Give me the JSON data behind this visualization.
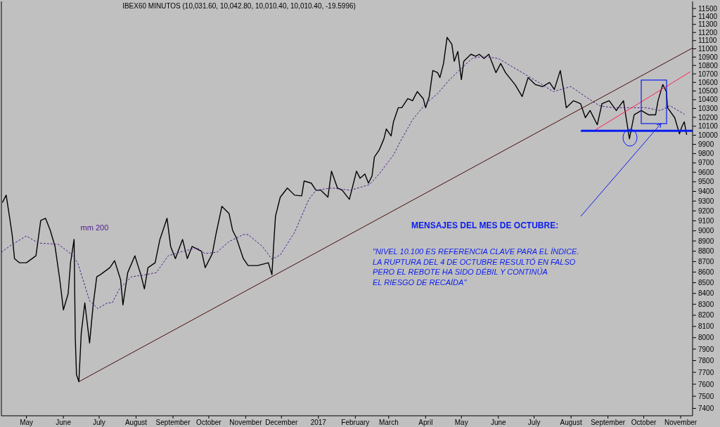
{
  "chart_data": {
    "type": "line",
    "title": "IBEX60 MINUTOS (10,031.60, 10,042.80, 10,010.40, 10,010.40, -19.5996)",
    "annotations": [
      "MENSAJES DEL MES DE OCTUBRE:",
      "\"NIVEL 10.100 ES REFERENCIA CLAVE PARA EL ÍNDICE.\nLA RUPTURA DEL 4 DE OCTUBRE RESULTÓ EN FALSO\nPERO EL REBOTE HA SIDO DÉBIL Y CONTINÚA\nEL RIESGO DE RECAÍDA\""
    ],
    "log": true,
    "grid": false,
    "xlim": [
      "2016-04-24",
      "2017-11-25"
    ],
    "xticks": [
      {
        "value": "2016-05-15",
        "label": "May"
      },
      {
        "value": "2016-06-15",
        "label": "June"
      },
      {
        "value": "2016-07-15",
        "label": "July"
      },
      {
        "value": "2016-08-15",
        "label": "August"
      },
      {
        "value": "2016-09-15",
        "label": "September"
      },
      {
        "value": "2016-10-15",
        "label": "October"
      },
      {
        "value": "2016-11-15",
        "label": "November"
      },
      {
        "value": "2016-12-15",
        "label": "December"
      },
      {
        "value": "2017-01-15",
        "label": "2017"
      },
      {
        "value": "2017-02-15",
        "label": "February"
      },
      {
        "value": "2017-03-15",
        "label": "March"
      },
      {
        "value": "2017-04-15",
        "label": "April"
      },
      {
        "value": "2017-05-15",
        "label": "May"
      },
      {
        "value": "2017-06-15",
        "label": "June"
      },
      {
        "value": "2017-07-15",
        "label": "July"
      },
      {
        "value": "2017-08-15",
        "label": "August"
      },
      {
        "value": "2017-09-15",
        "label": "September"
      },
      {
        "value": "2017-10-15",
        "label": "October"
      },
      {
        "value": "2017-11-15",
        "label": "November"
      }
    ],
    "ylim": [
      7340,
      11590
    ],
    "yticks": [
      7400,
      7500,
      7600,
      7700,
      7800,
      7900,
      8000,
      8100,
      8200,
      8300,
      8400,
      8500,
      8600,
      8700,
      8800,
      8900,
      9000,
      9100,
      9200,
      9300,
      9400,
      9500,
      9600,
      9700,
      9800,
      9900,
      10000,
      10100,
      10200,
      10300,
      10400,
      10500,
      10600,
      10700,
      10800,
      10900,
      11000,
      11100,
      11200,
      11300,
      11400,
      11500
    ],
    "series": [
      {
        "color": "#000000",
        "x": [
          "2016-04-25",
          "2016-04-28",
          "2016-05-01",
          "2016-05-03",
          "2016-05-05",
          "2016-05-09",
          "2016-05-15",
          "2016-05-23",
          "2016-05-27",
          "2016-05-31",
          "2016-06-04",
          "2016-06-08",
          "2016-06-12",
          "2016-06-15",
          "2016-06-19",
          "2016-06-21",
          "2016-06-24",
          "2016-06-25",
          "2016-06-26",
          "2016-06-28",
          "2016-06-30",
          "2016-07-03",
          "2016-07-07",
          "2016-07-10",
          "2016-07-13",
          "2016-07-16",
          "2016-07-24",
          "2016-07-28",
          "2016-08-02",
          "2016-08-04",
          "2016-08-08",
          "2016-08-14",
          "2016-08-19",
          "2016-08-22",
          "2016-08-25",
          "2016-08-31",
          "2016-09-04",
          "2016-09-10",
          "2016-09-13",
          "2016-09-17",
          "2016-09-23",
          "2016-09-27",
          "2016-10-01",
          "2016-10-09",
          "2016-10-12",
          "2016-10-18",
          "2016-10-21",
          "2016-10-26",
          "2016-11-01",
          "2016-11-04",
          "2016-11-07",
          "2016-11-13",
          "2016-11-17",
          "2016-11-25",
          "2016-12-04",
          "2016-12-07",
          "2016-12-09",
          "2016-12-10",
          "2016-12-14",
          "2016-12-20",
          "2016-12-26",
          "2017-01-01",
          "2017-01-03",
          "2017-01-09",
          "2017-01-13",
          "2017-01-17",
          "2017-01-23",
          "2017-01-26",
          "2017-01-31",
          "2017-02-04",
          "2017-02-10",
          "2017-02-16",
          "2017-02-19",
          "2017-02-23",
          "2017-02-26",
          "2017-03-01",
          "2017-03-03",
          "2017-03-07",
          "2017-03-11",
          "2017-03-13",
          "2017-03-17",
          "2017-03-19",
          "2017-03-23",
          "2017-03-26",
          "2017-03-31",
          "2017-04-04",
          "2017-04-08",
          "2017-04-13",
          "2017-04-15",
          "2017-04-18",
          "2017-04-21",
          "2017-04-25",
          "2017-04-27",
          "2017-04-30",
          "2017-05-03",
          "2017-05-07",
          "2017-05-09",
          "2017-05-12",
          "2017-05-15",
          "2017-05-17",
          "2017-05-23",
          "2017-05-27",
          "2017-05-30",
          "2017-06-03",
          "2017-06-07",
          "2017-06-13",
          "2017-06-17",
          "2017-06-21",
          "2017-06-29",
          "2017-07-05",
          "2017-07-10",
          "2017-07-16",
          "2017-07-22",
          "2017-07-28",
          "2017-08-01",
          "2017-08-06",
          "2017-08-09",
          "2017-08-11",
          "2017-08-17",
          "2017-08-23",
          "2017-08-27",
          "2017-08-31",
          "2017-09-06",
          "2017-09-10",
          "2017-09-16",
          "2017-09-22",
          "2017-09-28",
          "2017-10-03",
          "2017-10-07",
          "2017-10-13",
          "2017-10-19",
          "2017-10-25",
          "2017-10-27",
          "2017-10-31",
          "2017-11-03",
          "2017-11-04",
          "2017-11-10",
          "2017-11-14",
          "2017-11-16",
          "2017-11-18",
          "2017-11-20"
        ],
        "values": [
          9289,
          9361,
          9125,
          8963,
          8729,
          8689,
          8689,
          8756,
          9104,
          9125,
          9005,
          8846,
          8528,
          8249,
          8397,
          8689,
          8915,
          7997,
          7680,
          7621,
          8040,
          8313,
          7953,
          8294,
          8555,
          8575,
          8642,
          8709,
          8528,
          8294,
          8595,
          8756,
          8575,
          8442,
          8642,
          8689,
          8915,
          9125,
          8846,
          8729,
          8915,
          8729,
          8846,
          8798,
          8642,
          8777,
          8963,
          9246,
          9174,
          9005,
          8935,
          8729,
          8662,
          8662,
          8689,
          8575,
          8963,
          9146,
          9340,
          9435,
          9361,
          9354,
          9508,
          9486,
          9412,
          9412,
          9340,
          9612,
          9435,
          9412,
          9318,
          9612,
          9537,
          9582,
          9486,
          9560,
          9762,
          9838,
          9961,
          10070,
          9992,
          10149,
          10308,
          10308,
          10412,
          10388,
          10493,
          10412,
          10308,
          10436,
          10740,
          10715,
          10657,
          10824,
          11140,
          11054,
          10849,
          10968,
          10632,
          10849,
          10934,
          10909,
          10934,
          10883,
          10934,
          10715,
          10824,
          10715,
          10575,
          10436,
          10657,
          10575,
          10551,
          10599,
          10518,
          10740,
          10493,
          10308,
          10388,
          10355,
          10196,
          10276,
          10117,
          10355,
          10388,
          10276,
          10388,
          9961,
          10228,
          10276,
          10228,
          10228,
          10388,
          10575,
          10493,
          10308,
          10196,
          10016,
          10094,
          10149,
          10010
        ]
      },
      {
        "name": "mm 200",
        "color": "#4b1a8c",
        "line_style": "dotted",
        "x": [
          "2016-04-24",
          "2016-05-03",
          "2016-05-15",
          "2016-05-25",
          "2016-06-11",
          "2016-06-21",
          "2016-06-27",
          "2016-07-07",
          "2016-07-14",
          "2016-07-22",
          "2016-07-26",
          "2016-08-01",
          "2016-08-11",
          "2016-08-23",
          "2016-09-01",
          "2016-09-11",
          "2016-09-23",
          "2016-10-05",
          "2016-10-12",
          "2016-10-22",
          "2016-11-01",
          "2016-11-13",
          "2016-11-17",
          "2016-11-29",
          "2016-12-07",
          "2016-12-14",
          "2016-12-26",
          "2017-01-07",
          "2017-01-13",
          "2017-01-26",
          "2017-02-11",
          "2017-02-27",
          "2017-03-07",
          "2017-03-19",
          "2017-03-26",
          "2017-04-04",
          "2017-04-15",
          "2017-04-25",
          "2017-05-05",
          "2017-05-15",
          "2017-05-24",
          "2017-06-02",
          "2017-06-15",
          "2017-06-25",
          "2017-07-05",
          "2017-07-19",
          "2017-07-31",
          "2017-08-15",
          "2017-08-27",
          "2017-09-08",
          "2017-09-19",
          "2017-10-05",
          "2017-10-17",
          "2017-10-29",
          "2017-11-06",
          "2017-11-18"
        ],
        "values": [
          8791,
          8866,
          8949,
          8880,
          8866,
          8777,
          8689,
          8332,
          8261,
          8313,
          8313,
          8442,
          8555,
          8575,
          8595,
          8756,
          8798,
          8832,
          8777,
          8791,
          8894,
          8963,
          8963,
          8846,
          8723,
          8764,
          8984,
          9318,
          9412,
          9435,
          9412,
          9471,
          9582,
          9785,
          9961,
          10172,
          10355,
          10469,
          10632,
          10766,
          10883,
          10909,
          10883,
          10799,
          10715,
          10599,
          10493,
          10551,
          10436,
          10331,
          10308,
          10308,
          10308,
          10276,
          10331,
          10236
        ]
      },
      {
        "color": "#4a0a0a",
        "x": [
          "2016-06-28",
          "2017-11-25"
        ],
        "values": [
          7621,
          11010
        ]
      },
      {
        "color": "#ff2050",
        "x": [
          "2017-09-04",
          "2017-11-23"
        ],
        "values": [
          10055,
          10724
        ]
      },
      {
        "color": "#0a1cf0",
        "x": [
          "2017-08-24",
          "2017-11-25"
        ],
        "values": [
          10050,
          10050
        ]
      }
    ]
  }
}
